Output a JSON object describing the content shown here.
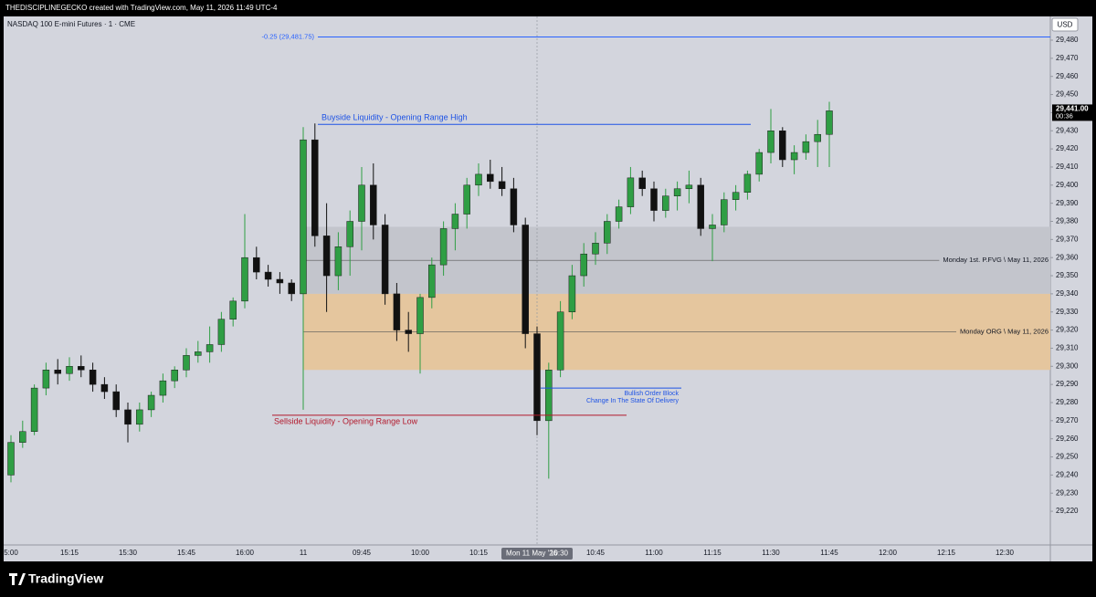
{
  "credit": "THEDISCIPLINEGECKO created with TradingView.com, May 11, 2026 11:49 UTC-4",
  "logo": "TradingView",
  "chart_data": {
    "type": "candlestick",
    "title": "NASDAQ 100 E-mini Futures · 1 · CME",
    "currency": "USD",
    "categories": [
      "5:00",
      null,
      null,
      null,
      null,
      "15:15",
      null,
      null,
      null,
      null,
      "15:30",
      null,
      null,
      null,
      null,
      "15:45",
      null,
      null,
      null,
      null,
      "16:00",
      null,
      null,
      null,
      null,
      "11",
      null,
      null,
      null,
      null,
      "09:45",
      null,
      null,
      null,
      null,
      "10:00",
      null,
      null,
      null,
      null,
      "10:15",
      null,
      null,
      null,
      null,
      "10:30",
      null,
      null,
      null,
      null,
      "10:45",
      null,
      null,
      null,
      null,
      "11:00",
      null,
      null,
      null,
      null,
      "11:15",
      null,
      null,
      null,
      null,
      "11:30",
      null,
      null,
      null,
      null,
      "11:45",
      null,
      null,
      null,
      null,
      "12:00",
      null,
      null,
      null,
      null,
      "12:15",
      null,
      null,
      null,
      null,
      "12:30"
    ],
    "open": [
      29240,
      29258,
      29264,
      29288,
      29298,
      29296,
      29300,
      29298,
      29290,
      29286,
      29276,
      29268,
      29276,
      29284,
      29292,
      29298,
      29306,
      29308,
      29312,
      29326,
      29336,
      29360,
      29352,
      29348,
      29346,
      29340,
      29425,
      29372,
      29350,
      29366,
      29380,
      29400,
      29378,
      29340,
      29320,
      29318,
      29338,
      29356,
      29376,
      29384,
      29400,
      29406,
      29402,
      29398,
      29378,
      29318,
      29270,
      29298,
      29330,
      29350,
      29362,
      29368,
      29380,
      29388,
      29404,
      29398,
      29386,
      29394,
      29398,
      29400,
      29376,
      29378,
      29392,
      29396,
      29406,
      29418,
      29430,
      29414,
      29418,
      29424,
      29428,
      null,
      null,
      null,
      null,
      null,
      null,
      null,
      null,
      null,
      null,
      null,
      null,
      null,
      null,
      null
    ],
    "high": [
      29262,
      29270,
      29290,
      29302,
      29304,
      29305,
      29306,
      29302,
      29294,
      29290,
      29280,
      29280,
      29286,
      29296,
      29300,
      29310,
      29314,
      29322,
      29330,
      29338,
      29384,
      29366,
      29356,
      29352,
      29348,
      29432,
      29434,
      29390,
      29374,
      29386,
      29410,
      29412,
      29384,
      29346,
      29330,
      29340,
      29360,
      29380,
      29390,
      29404,
      29412,
      29414,
      29410,
      29404,
      29382,
      29322,
      29302,
      29336,
      29356,
      29368,
      29374,
      29384,
      29392,
      29410,
      29408,
      29402,
      29398,
      29402,
      29408,
      29404,
      29384,
      29396,
      29400,
      29408,
      29420,
      29442,
      29432,
      29422,
      29428,
      29436,
      29446,
      null,
      null,
      null,
      null,
      null,
      null,
      null,
      null,
      null,
      null,
      null,
      null,
      null,
      null,
      null
    ],
    "low": [
      29236,
      29255,
      29262,
      29284,
      29290,
      29292,
      29294,
      29286,
      29282,
      29272,
      29258,
      29264,
      29272,
      29280,
      29288,
      29294,
      29302,
      29302,
      29308,
      29322,
      29332,
      29348,
      29344,
      29340,
      29336,
      29276,
      29366,
      29330,
      29342,
      29350,
      29364,
      29370,
      29334,
      29314,
      29308,
      29296,
      29332,
      29350,
      29364,
      29376,
      29394,
      29398,
      29394,
      29374,
      29310,
      29262,
      29238,
      29294,
      29326,
      29344,
      29356,
      29362,
      29376,
      29384,
      29394,
      29380,
      29382,
      29386,
      29390,
      29372,
      29358,
      29374,
      29386,
      29392,
      29402,
      29412,
      29410,
      29406,
      29414,
      29410,
      29410,
      null,
      null,
      null,
      null,
      null,
      null,
      null,
      null,
      null,
      null,
      null,
      null,
      null,
      null,
      null
    ],
    "close": [
      29258,
      29264,
      29288,
      29298,
      29296,
      29300,
      29298,
      29290,
      29286,
      29276,
      29268,
      29276,
      29284,
      29292,
      29298,
      29306,
      29308,
      29312,
      29326,
      29336,
      29360,
      29352,
      29348,
      29346,
      29340,
      29425,
      29372,
      29350,
      29366,
      29380,
      29400,
      29378,
      29340,
      29320,
      29318,
      29338,
      29356,
      29376,
      29384,
      29400,
      29406,
      29402,
      29398,
      29378,
      29318,
      29270,
      29298,
      29330,
      29350,
      29362,
      29368,
      29380,
      29388,
      29404,
      29398,
      29386,
      29394,
      29398,
      29400,
      29376,
      29378,
      29392,
      29396,
      29406,
      29418,
      29430,
      29414,
      29418,
      29424,
      29428,
      29441,
      null,
      null,
      null,
      null,
      null,
      null,
      null,
      null,
      null,
      null,
      null,
      null,
      null,
      null,
      null
    ],
    "up_color": "#2f9e44",
    "down_color": "#111111",
    "ylim": [
      29201.4,
      29493.1
    ],
    "yticks": [
      {
        "value": 29220,
        "label": "29,220"
      },
      {
        "value": 29230,
        "label": "29,230"
      },
      {
        "value": 29240,
        "label": "29,240"
      },
      {
        "value": 29250,
        "label": "29,250"
      },
      {
        "value": 29260,
        "label": "29,260"
      },
      {
        "value": 29270,
        "label": "29,270"
      },
      {
        "value": 29280,
        "label": "29,280"
      },
      {
        "value": 29290,
        "label": "29,290"
      },
      {
        "value": 29300,
        "label": "29,300"
      },
      {
        "value": 29310,
        "label": "29,310"
      },
      {
        "value": 29320,
        "label": "29,320"
      },
      {
        "value": 29330,
        "label": "29,330"
      },
      {
        "value": 29340,
        "label": "29,340"
      },
      {
        "value": 29350,
        "label": "29,350"
      },
      {
        "value": 29360,
        "label": "29,360"
      },
      {
        "value": 29370,
        "label": "29,370"
      },
      {
        "value": 29380,
        "label": "29,380"
      },
      {
        "value": 29390,
        "label": "29,390"
      },
      {
        "value": 29400,
        "label": "29,400"
      },
      {
        "value": 29410,
        "label": "29,410"
      },
      {
        "value": 29420,
        "label": "29,420"
      },
      {
        "value": 29430,
        "label": "29,430"
      },
      {
        "value": 29440,
        "label": "29,440"
      },
      {
        "value": 29450,
        "label": "29,450"
      },
      {
        "value": 29460,
        "label": "29,460"
      },
      {
        "value": 29470,
        "label": "29,470"
      },
      {
        "value": 29480,
        "label": "29,480"
      }
    ],
    "grid": false,
    "zones": [
      {
        "label": "Monday 1st. P.FVG \\ May 11, 2026",
        "top": 29377,
        "bottom": 29340,
        "color": "#c3c5cc"
      },
      {
        "label": "Monday ORG \\ May 11, 2026",
        "top": 29340,
        "bottom": 29298,
        "color": "#e5c69e"
      }
    ],
    "levels": [
      {
        "label": "-0.25 (29,481.75)",
        "value": 29481.75,
        "color": "#2962ff"
      },
      {
        "label": "Buyside Liquidity - Opening Range High",
        "value": 29433.5,
        "color": "#1e53e5"
      },
      {
        "label": "Sellside Liquidity - Opening Range Low",
        "value": 29273,
        "color": "#b2182b"
      },
      {
        "labels": [
          "Bullish Order Block",
          "Change In The State Of Delivery"
        ],
        "value": 29288,
        "color": "#1e53e5"
      }
    ],
    "crosshair": {
      "x": "10:30",
      "label": "Mon 11 May '26"
    },
    "last_price": {
      "value": 29441,
      "label": "29,441.00",
      "countdown": "00:36"
    }
  }
}
